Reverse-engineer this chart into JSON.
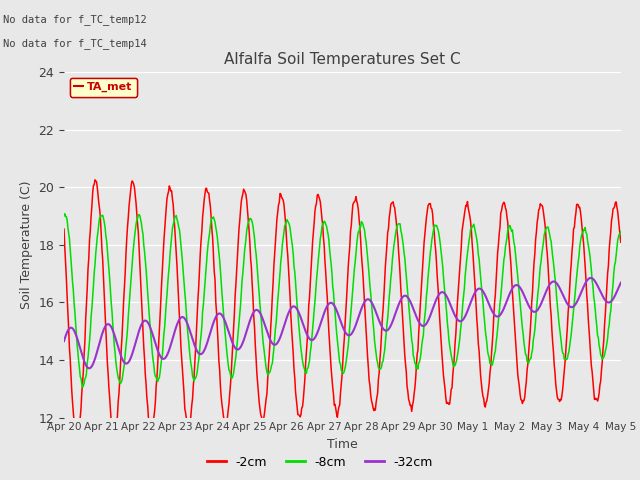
{
  "title": "Alfalfa Soil Temperatures Set C",
  "xlabel": "Time",
  "ylabel": "Soil Temperature (C)",
  "ylim": [
    12,
    24
  ],
  "yticks": [
    12,
    14,
    16,
    18,
    20,
    22,
    24
  ],
  "background_color": "#e8e8e8",
  "plot_bg_color": "#e8e8e8",
  "text_color": "#404040",
  "no_data_text": [
    "No data for f_TC_temp12",
    "No data for f_TC_temp14"
  ],
  "legend_label": "TA_met",
  "legend_bg": "#ffffcc",
  "legend_border": "#cc0000",
  "x_labels": [
    "Apr 20",
    "Apr 21",
    "Apr 22",
    "Apr 23",
    "Apr 24",
    "Apr 25",
    "Apr 26",
    "Apr 27",
    "Apr 28",
    "Apr 29",
    "Apr 30",
    "May 1",
    "May 2",
    "May 3",
    "May 4",
    "May 5"
  ],
  "series": {
    "2cm": {
      "color": "#ff0000",
      "label": "-2cm"
    },
    "8cm": {
      "color": "#00dd00",
      "label": "-8cm"
    },
    "32cm": {
      "color": "#9933cc",
      "label": "-32cm"
    }
  }
}
